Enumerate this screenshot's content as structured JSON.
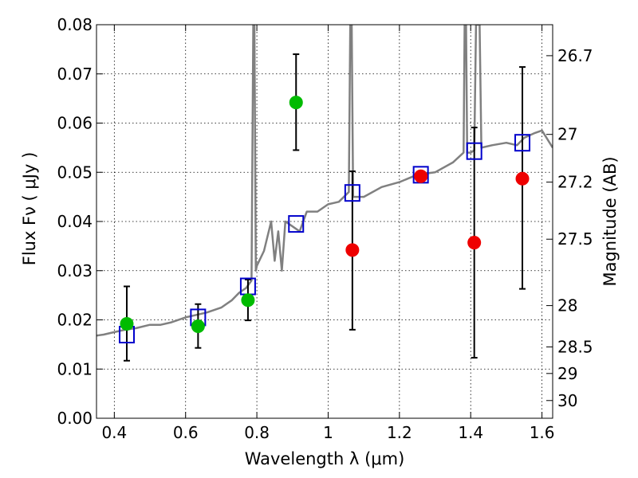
{
  "chart_data": {
    "type": "scatter",
    "xlabel": "Wavelength  λ (μm)",
    "ylabel": "Flux  Fν  ( μJy )",
    "ylabel_right": "Magnitude (AB)",
    "xlim": [
      0.35,
      1.63
    ],
    "ylim": [
      0.0,
      0.08
    ],
    "grid": true,
    "x_ticks": [
      0.4,
      0.6,
      0.8,
      1.0,
      1.2,
      1.4,
      1.6
    ],
    "x_tick_labels": [
      "0.4",
      "0.6",
      "0.8",
      "1",
      "1.2",
      "1.4",
      "1.6"
    ],
    "y_ticks": [
      0.0,
      0.01,
      0.02,
      0.03,
      0.04,
      0.05,
      0.06,
      0.07,
      0.08
    ],
    "y_tick_labels": [
      "0.00",
      "0.01",
      "0.02",
      "0.03",
      "0.04",
      "0.05",
      "0.06",
      "0.07",
      "0.08"
    ],
    "magnitude_ticks": [
      {
        "label": "26.7",
        "flux": 0.0737
      },
      {
        "label": "27",
        "flux": 0.0577
      },
      {
        "label": "27.2",
        "flux": 0.048
      },
      {
        "label": "27.5",
        "flux": 0.0364
      },
      {
        "label": "28",
        "flux": 0.0229
      },
      {
        "label": "28.5",
        "flux": 0.0145
      },
      {
        "label": "29",
        "flux": 0.0091
      },
      {
        "label": "30",
        "flux": 0.0036
      }
    ],
    "series": [
      {
        "kind": "spectrum",
        "color": "#808080",
        "points": [
          [
            0.35,
            0.0168
          ],
          [
            0.37,
            0.017
          ],
          [
            0.4,
            0.0175
          ],
          [
            0.43,
            0.018
          ],
          [
            0.46,
            0.0183
          ],
          [
            0.5,
            0.019
          ],
          [
            0.53,
            0.019
          ],
          [
            0.56,
            0.0195
          ],
          [
            0.6,
            0.0205
          ],
          [
            0.63,
            0.021
          ],
          [
            0.66,
            0.0215
          ],
          [
            0.7,
            0.0225
          ],
          [
            0.73,
            0.024
          ],
          [
            0.75,
            0.0255
          ],
          [
            0.77,
            0.0265
          ],
          [
            0.785,
            0.028
          ],
          [
            0.79,
            0.08
          ],
          [
            0.793,
            0.08
          ],
          [
            0.797,
            0.03
          ],
          [
            0.8,
            0.031
          ],
          [
            0.82,
            0.034
          ],
          [
            0.84,
            0.04
          ],
          [
            0.85,
            0.032
          ],
          [
            0.86,
            0.038
          ],
          [
            0.87,
            0.03
          ],
          [
            0.88,
            0.04
          ],
          [
            0.9,
            0.039
          ],
          [
            0.92,
            0.038
          ],
          [
            0.94,
            0.042
          ],
          [
            0.97,
            0.042
          ],
          [
            1.0,
            0.0435
          ],
          [
            1.03,
            0.044
          ],
          [
            1.058,
            0.046
          ],
          [
            1.062,
            0.08
          ],
          [
            1.066,
            0.08
          ],
          [
            1.07,
            0.045
          ],
          [
            1.1,
            0.045
          ],
          [
            1.15,
            0.047
          ],
          [
            1.2,
            0.048
          ],
          [
            1.25,
            0.0495
          ],
          [
            1.3,
            0.05
          ],
          [
            1.35,
            0.052
          ],
          [
            1.38,
            0.054
          ],
          [
            1.383,
            0.08
          ],
          [
            1.387,
            0.08
          ],
          [
            1.39,
            0.054
          ],
          [
            1.4,
            0.054
          ],
          [
            1.41,
            0.0545
          ],
          [
            1.415,
            0.08
          ],
          [
            1.425,
            0.08
          ],
          [
            1.43,
            0.055
          ],
          [
            1.46,
            0.0555
          ],
          [
            1.5,
            0.056
          ],
          [
            1.53,
            0.0555
          ],
          [
            1.55,
            0.057
          ],
          [
            1.58,
            0.058
          ],
          [
            1.6,
            0.0585
          ],
          [
            1.63,
            0.055
          ]
        ]
      },
      {
        "kind": "model-boxes",
        "color": "#0000cc",
        "x": [
          0.435,
          0.635,
          0.775,
          0.91,
          1.068,
          1.26,
          1.41,
          1.545
        ],
        "y": [
          0.017,
          0.0205,
          0.0268,
          0.0395,
          0.0458,
          0.0495,
          0.0543,
          0.056
        ]
      },
      {
        "kind": "green-detections",
        "color": "#00bb00",
        "x": [
          0.435,
          0.635,
          0.775,
          0.91
        ],
        "y": [
          0.0192,
          0.0187,
          0.024,
          0.0642
        ],
        "yerr_low": [
          0.0117,
          0.0143,
          0.0199,
          0.0545
        ],
        "yerr_high": [
          0.0268,
          0.0232,
          0.0282,
          0.074
        ]
      },
      {
        "kind": "red-detections",
        "color": "#ee0000",
        "x": [
          1.068,
          1.26,
          1.41,
          1.545
        ],
        "y": [
          0.0342,
          0.0492,
          0.0357,
          0.0487
        ],
        "yerr_low": [
          0.018,
          null,
          0.0123,
          0.0263
        ],
        "yerr_high": [
          0.0502,
          null,
          0.0591,
          0.0714
        ]
      }
    ]
  }
}
